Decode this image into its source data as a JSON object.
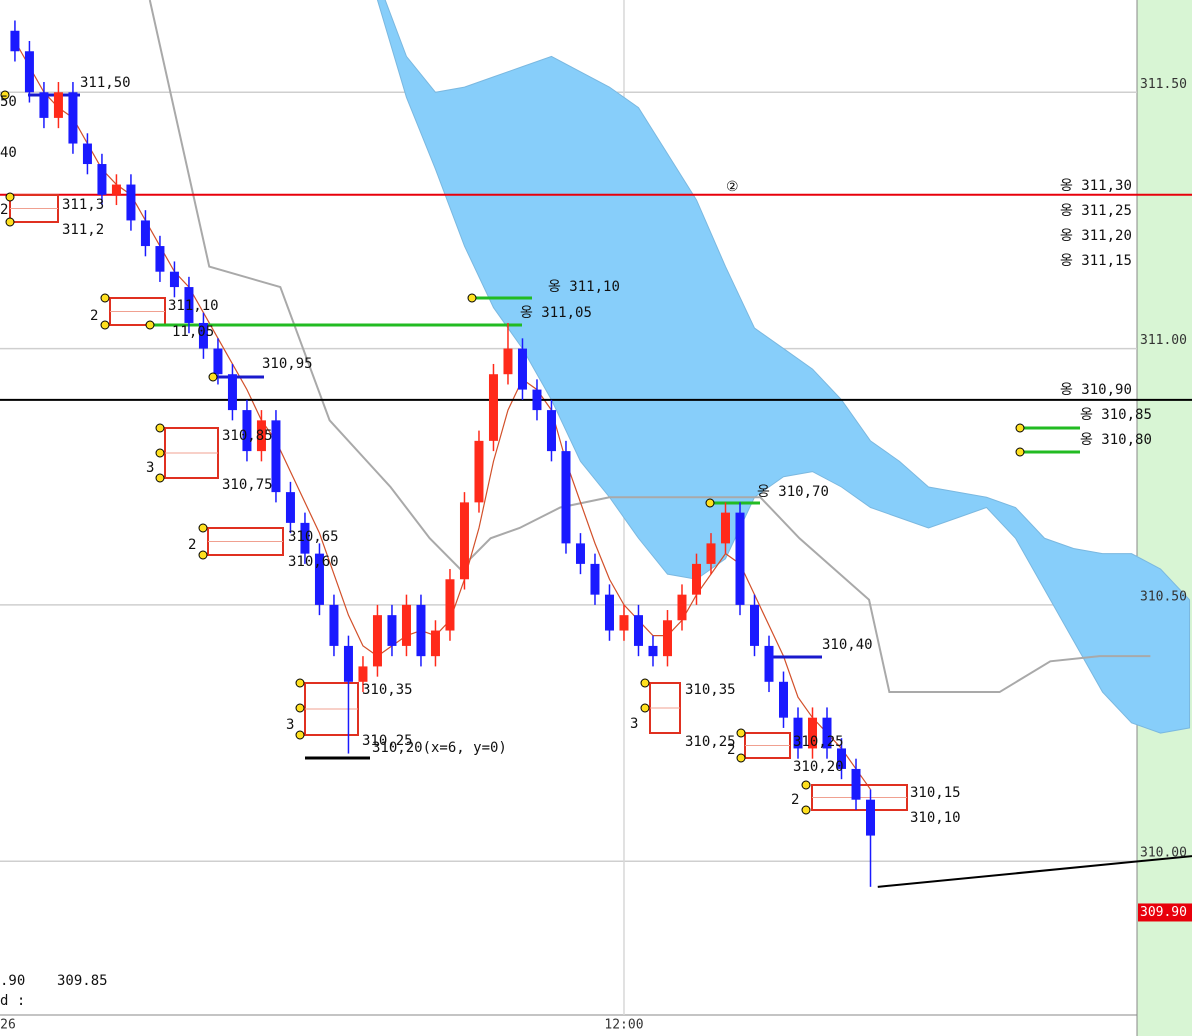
{
  "chart_data": {
    "type": "candlestick",
    "categories": [
      "26",
      null,
      null,
      null,
      null,
      null,
      null,
      null,
      null,
      null,
      null,
      null,
      null,
      null,
      null,
      null,
      null,
      null,
      null,
      null,
      null,
      null,
      null,
      null,
      null,
      null,
      null,
      null,
      null,
      null,
      null,
      null,
      null,
      null,
      null,
      null,
      null,
      null,
      null,
      null,
      null,
      null,
      "12:00",
      null,
      null,
      null,
      null,
      null,
      null,
      null,
      null,
      null,
      null,
      null,
      null,
      null,
      null,
      null,
      null,
      null
    ],
    "open": [
      311.62,
      311.58,
      311.5,
      311.45,
      311.5,
      311.4,
      311.36,
      311.3,
      311.32,
      311.25,
      311.2,
      311.15,
      311.12,
      311.05,
      311.0,
      310.95,
      310.88,
      310.8,
      310.86,
      310.72,
      310.66,
      310.6,
      310.5,
      310.42,
      310.35,
      310.38,
      310.48,
      310.42,
      310.5,
      310.4,
      310.45,
      310.55,
      310.7,
      310.82,
      310.95,
      311.0,
      310.92,
      310.88,
      310.8,
      310.62,
      310.58,
      310.52,
      310.45,
      310.48,
      310.42,
      310.4,
      310.47,
      310.52,
      310.58,
      310.62,
      310.68,
      310.5,
      310.42,
      310.35,
      310.28,
      310.22,
      310.28,
      310.22,
      310.18,
      310.12
    ],
    "high": [
      311.64,
      311.6,
      311.52,
      311.52,
      311.52,
      311.42,
      311.38,
      311.34,
      311.34,
      311.27,
      311.22,
      311.17,
      311.14,
      311.07,
      311.02,
      310.97,
      310.9,
      310.88,
      310.88,
      310.74,
      310.68,
      310.62,
      310.52,
      310.44,
      310.4,
      310.5,
      310.5,
      310.52,
      310.52,
      310.47,
      310.57,
      310.72,
      310.84,
      310.97,
      311.05,
      311.02,
      310.94,
      310.9,
      310.82,
      310.64,
      310.6,
      310.54,
      310.5,
      310.5,
      310.44,
      310.49,
      310.54,
      310.6,
      310.64,
      310.7,
      310.7,
      310.52,
      310.44,
      310.37,
      310.3,
      310.3,
      310.3,
      310.24,
      310.2,
      310.14
    ],
    "low": [
      311.56,
      311.48,
      311.43,
      311.43,
      311.38,
      311.34,
      311.28,
      311.28,
      311.23,
      311.18,
      311.13,
      311.1,
      311.03,
      310.98,
      310.93,
      310.86,
      310.78,
      310.78,
      310.7,
      310.64,
      310.58,
      310.48,
      310.4,
      310.21,
      310.33,
      310.36,
      310.4,
      310.4,
      310.38,
      310.38,
      310.43,
      310.53,
      310.68,
      310.8,
      310.93,
      310.9,
      310.86,
      310.78,
      310.6,
      310.56,
      310.5,
      310.43,
      310.43,
      310.4,
      310.38,
      310.38,
      310.45,
      310.5,
      310.56,
      310.6,
      310.48,
      310.4,
      310.33,
      310.26,
      310.2,
      310.2,
      310.2,
      310.16,
      310.1,
      309.95
    ],
    "close": [
      311.58,
      311.5,
      311.45,
      311.5,
      311.4,
      311.36,
      311.3,
      311.32,
      311.25,
      311.2,
      311.15,
      311.12,
      311.05,
      311.0,
      310.95,
      310.88,
      310.8,
      310.86,
      310.72,
      310.66,
      310.6,
      310.5,
      310.42,
      310.35,
      310.38,
      310.48,
      310.42,
      310.5,
      310.4,
      310.45,
      310.55,
      310.7,
      310.82,
      310.95,
      311.0,
      310.92,
      310.88,
      310.8,
      310.62,
      310.58,
      310.52,
      310.45,
      310.48,
      310.42,
      310.4,
      310.47,
      310.52,
      310.58,
      310.62,
      310.68,
      310.5,
      310.42,
      310.35,
      310.28,
      310.22,
      310.28,
      310.22,
      310.18,
      310.12,
      310.05
    ],
    "up_color": "#ff2a1a",
    "down_color": "#1a1aff",
    "ma": {
      "color": "#d2502a",
      "values": [
        311.6,
        311.55,
        311.5,
        311.47,
        311.45,
        311.4,
        311.35,
        311.32,
        311.3,
        311.25,
        311.2,
        311.15,
        311.12,
        311.07,
        311.02,
        310.97,
        310.92,
        310.86,
        310.82,
        310.76,
        310.7,
        310.64,
        310.56,
        310.48,
        310.42,
        310.4,
        310.42,
        310.44,
        310.45,
        310.44,
        310.47,
        310.55,
        310.65,
        310.78,
        310.88,
        310.94,
        310.92,
        310.88,
        310.78,
        310.7,
        310.62,
        310.55,
        310.5,
        310.47,
        310.44,
        310.44,
        310.47,
        310.52,
        310.56,
        310.6,
        310.58,
        310.52,
        310.46,
        310.4,
        310.32,
        310.28,
        310.25,
        310.22,
        310.18,
        310.14
      ]
    },
    "gray_line": {
      "color": "#a9a9a9",
      "x": [
        9.3,
        13.4,
        18.3,
        21.7,
        25.9,
        28.6,
        30.7,
        32.8,
        34.8,
        37.6,
        41.0,
        51.4,
        54.1,
        58.9,
        60.3,
        67.9,
        71.4,
        74.8,
        78.3
      ],
      "values": [
        311.68,
        311.16,
        311.12,
        310.86,
        310.73,
        310.63,
        310.57,
        310.63,
        310.65,
        310.69,
        310.71,
        310.71,
        310.63,
        310.51,
        310.33,
        310.33,
        310.39,
        310.4,
        310.4
      ]
    },
    "cloud": {
      "color": "#87cefa",
      "x": [
        25,
        27,
        29,
        31,
        33,
        35,
        37,
        39,
        41,
        43,
        45,
        47,
        49,
        51,
        53,
        55,
        57,
        59,
        61,
        63,
        65,
        67,
        69,
        71,
        73,
        75,
        77,
        79,
        81
      ],
      "upper": [
        311.72,
        311.57,
        311.5,
        311.51,
        311.53,
        311.55,
        311.57,
        311.54,
        311.51,
        311.47,
        311.38,
        311.29,
        311.16,
        311.04,
        311.0,
        310.96,
        310.9,
        310.82,
        310.78,
        310.73,
        310.72,
        310.71,
        310.69,
        310.63,
        310.61,
        310.6,
        310.6,
        310.57,
        310.51
      ],
      "lower": [
        311.68,
        311.49,
        311.35,
        311.2,
        311.08,
        311.0,
        310.9,
        310.78,
        310.71,
        310.63,
        310.56,
        310.55,
        310.59,
        310.71,
        310.75,
        310.76,
        310.73,
        310.69,
        310.67,
        310.65,
        310.67,
        310.69,
        310.63,
        310.53,
        310.43,
        310.33,
        310.27,
        310.25,
        310.26
      ]
    },
    "hlines": [
      {
        "value": 311.3,
        "color": "#e8000b"
      },
      {
        "value": 310.9,
        "color": "#000000"
      }
    ],
    "trendline": {
      "color": "#000000",
      "x": [
        59.5,
        81.17
      ],
      "values": [
        309.95,
        310.01
      ]
    },
    "xlim": [
      -1.03,
      81.17
    ],
    "ylim": [
      309.7,
      311.68
    ],
    "yticks": [
      {
        "value": 311.5,
        "label": "311.50"
      },
      {
        "value": 311,
        "label": "311.00"
      },
      {
        "value": 310.5,
        "label": "310.50"
      },
      {
        "value": 310,
        "label": "310.00"
      }
    ],
    "last_price": {
      "value": 309.9,
      "label": "309.90"
    },
    "grid": true,
    "annotations": [
      "311,50",
      "311,3",
      "311,2",
      "311,10",
      "11,05",
      "310,95",
      "310,85",
      "310,75",
      "310,65",
      "310,60",
      "310,35",
      "310,25",
      "310,20(x=6, y=0)",
      "옹 311,10",
      "옹 311,05",
      "②",
      "옹 311,30",
      "옹 311,25",
      "옹 311,20",
      "옹 311,15",
      "옹 310,90",
      "옹 310,85",
      "옹 310,80",
      "옹 310,70",
      "310,40",
      "310,35",
      "310,25",
      "310,25",
      "310,20",
      "310,15",
      "310,10",
      "2",
      "2",
      "3",
      "2",
      "3",
      "3",
      "2",
      "2",
      "50",
      "40",
      ".90",
      "309.85",
      "d :"
    ]
  }
}
